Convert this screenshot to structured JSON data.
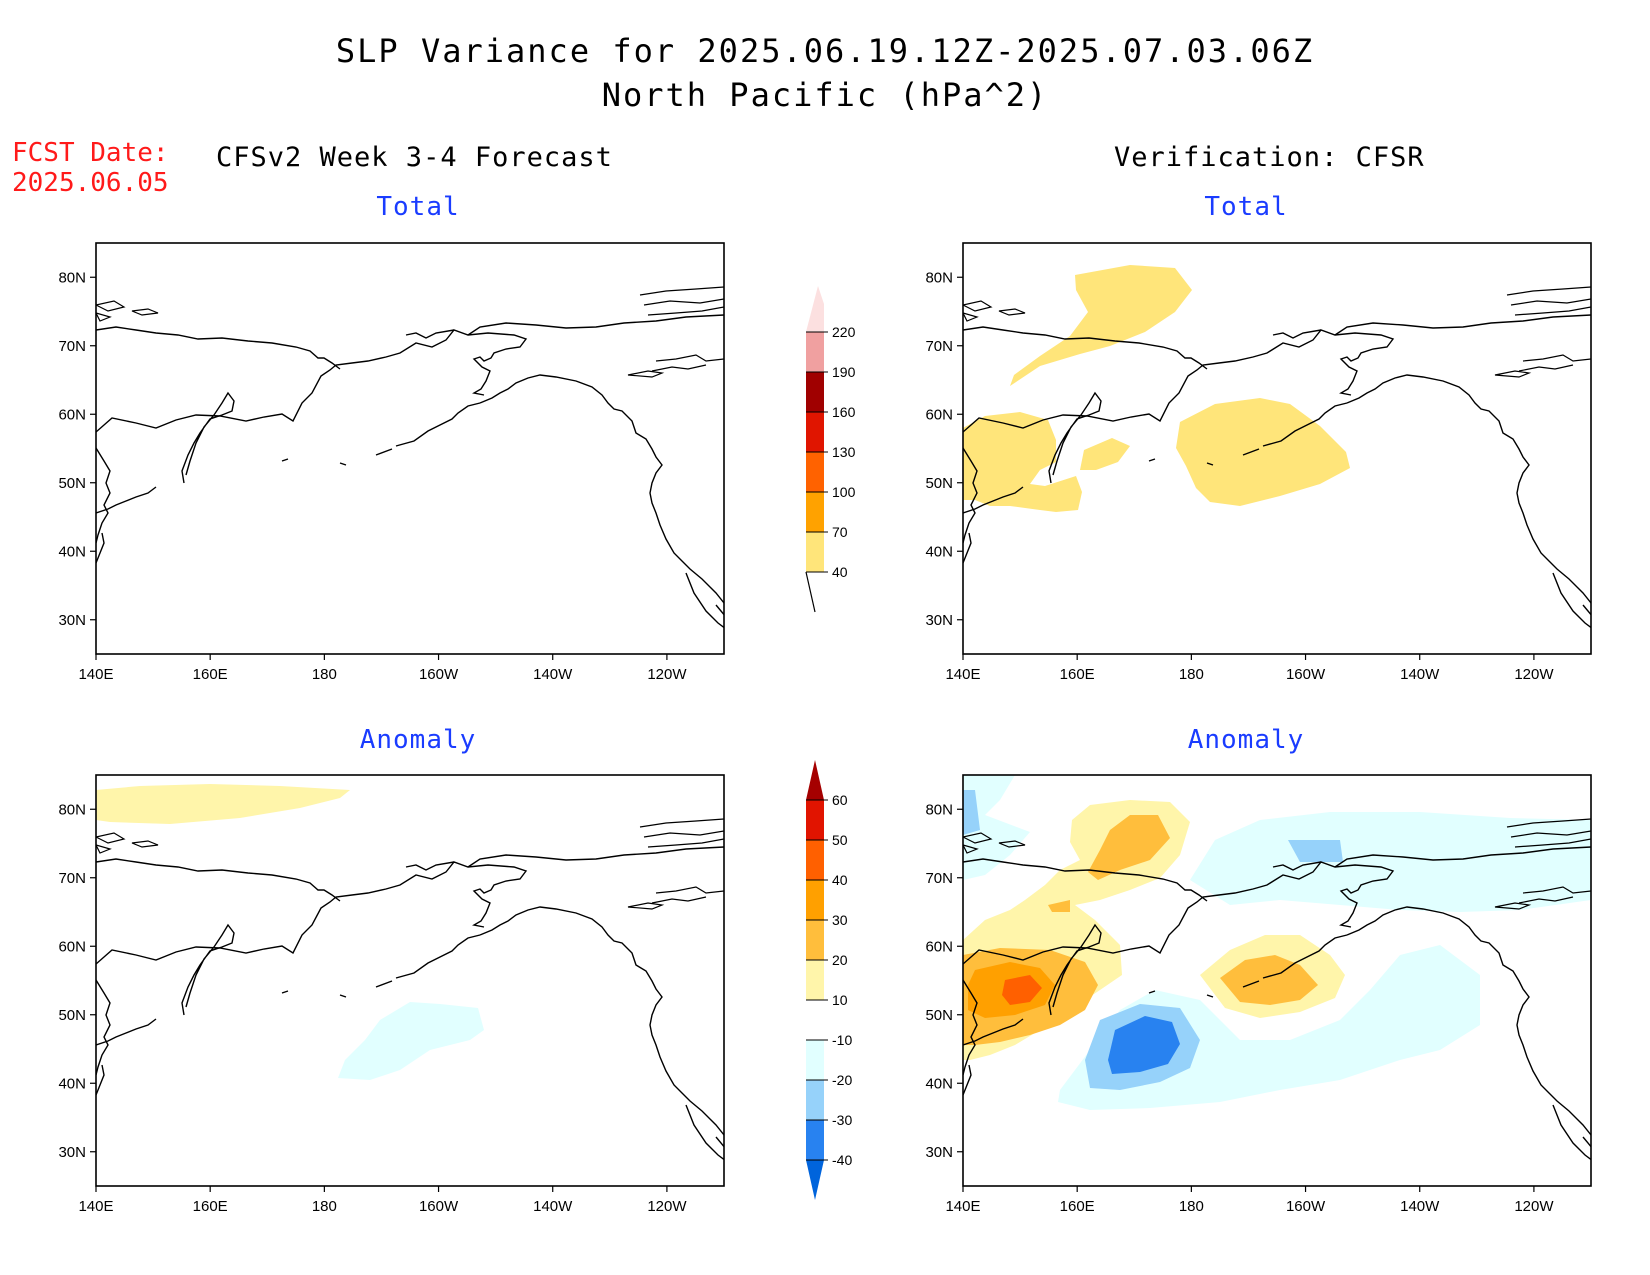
{
  "title": {
    "line1": "SLP Variance for 2025.06.19.12Z-2025.07.03.06Z",
    "line2": "North Pacific (hPa^2)"
  },
  "fcst_date": {
    "label": "FCST Date:",
    "value": "2025.06.05"
  },
  "columns": {
    "left_header": "CFSv2 Week 3-4 Forecast",
    "right_header": "Verification: CFSR"
  },
  "panels": {
    "top_left_title": "Total",
    "top_right_title": "Total",
    "bottom_left_title": "Anomaly",
    "bottom_right_title": "Anomaly"
  },
  "axes": {
    "x_ticks": [
      "140E",
      "160E",
      "180",
      "160W",
      "140W",
      "120W"
    ],
    "y_ticks": [
      "80N",
      "70N",
      "60N",
      "50N",
      "40N",
      "30N"
    ],
    "lon_range": [
      140,
      250
    ],
    "lat_range": [
      25,
      85
    ]
  },
  "colorbar_total": {
    "levels": [
      "40",
      "70",
      "100",
      "130",
      "160",
      "190",
      "220"
    ],
    "colors": [
      "#ffe57a",
      "#ffa200",
      "#ff6200",
      "#e01500",
      "#a00000",
      "#f0a0a0",
      "#fce0e0"
    ]
  },
  "colorbar_anomaly": {
    "levels": [
      "-40",
      "-30",
      "-20",
      "-10",
      "10",
      "20",
      "30",
      "40",
      "50",
      "60"
    ],
    "colors": [
      "#0064dc",
      "#2882f0",
      "#96d2fa",
      "#e1ffff",
      "#ffffff",
      "#fff5aa",
      "#ffbe3c",
      "#ffa000",
      "#ff6000",
      "#e11400",
      "#a50000"
    ]
  },
  "colors": {
    "title_blue": "#1a3cff",
    "fcst_red": "#ff1a1a"
  }
}
